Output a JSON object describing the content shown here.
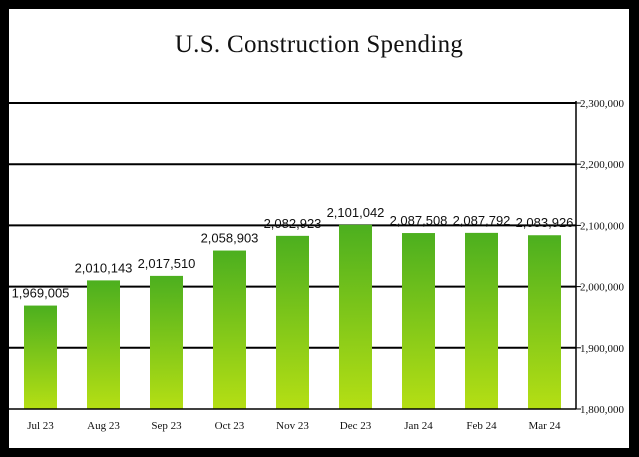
{
  "chart_data": {
    "type": "bar",
    "title": "U.S. Construction Spending",
    "categories": [
      "Jul 23",
      "Aug 23",
      "Sep 23",
      "Oct 23",
      "Nov 23",
      "Dec 23",
      "Jan 24",
      "Feb 24",
      "Mar 24"
    ],
    "values": [
      1969005,
      2010143,
      2017510,
      2058903,
      2082923,
      2101042,
      2087508,
      2087792,
      2083926
    ],
    "value_labels": [
      "1,969,005",
      "2,010,143",
      "2,017,510",
      "2,058,903",
      "2,082,923",
      "2,101,042",
      "2,087,508",
      "2,087,792",
      "2,083,926"
    ],
    "xlabel": "",
    "ylabel": "",
    "ylim": [
      1800000,
      2300000
    ],
    "yticks": [
      1800000,
      1900000,
      2000000,
      2100000,
      2200000,
      2300000
    ],
    "ytick_labels": [
      "1,800,000",
      "1,900,000",
      "2,000,000",
      "2,100,000",
      "2,200,000",
      "2,300,000"
    ],
    "y_axis_side": "right",
    "grid": true,
    "legend": "none",
    "colors": {
      "bar_top": "#4caf1f",
      "bar_bottom": "#b5df14",
      "grid": "#000000",
      "frame": "#000000"
    }
  }
}
